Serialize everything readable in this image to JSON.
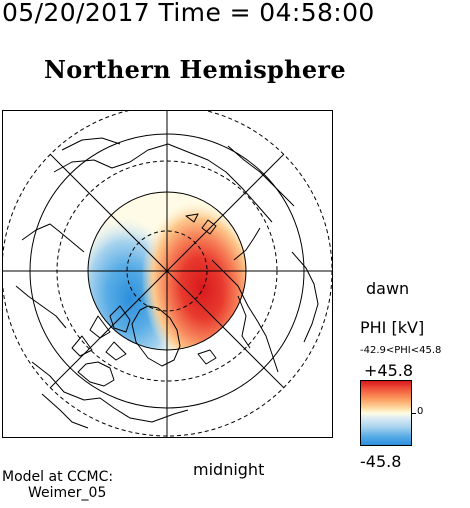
{
  "header": {
    "timestamp": "05/20/2017 Time = 04:58:00",
    "hemisphere_title": "Northern Hemisphere"
  },
  "map": {
    "dawn_label": "dawn",
    "midnight_label": "midnight",
    "colors": {
      "positive": "#d7191c",
      "negative": "#2c8fdc",
      "neutral": "#fffde0",
      "lines": "#000000"
    },
    "positive_cell_peak_kv": 45.8,
    "negative_cell_peak_kv": -42.9
  },
  "colorbar": {
    "title": "PHI [kV]",
    "range_text": "-42.9<PHI<45.8",
    "max_label": "+45.8",
    "min_label": "-45.8",
    "zero_label": "0"
  },
  "footer": {
    "model_line1": "Model at CCMC:",
    "model_line2": "Weimer_05"
  }
}
